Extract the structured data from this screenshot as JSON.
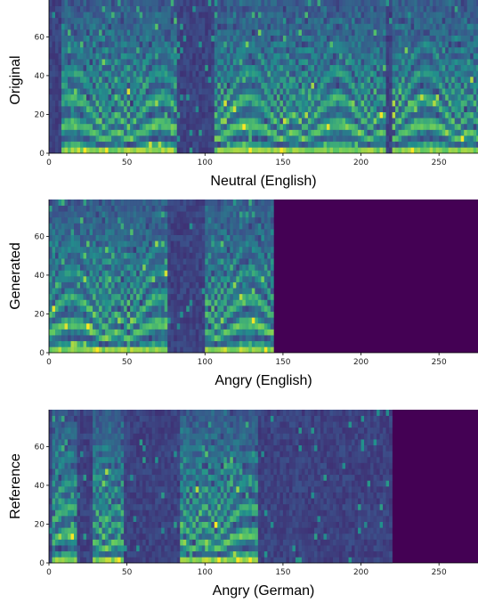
{
  "chart_data": [
    {
      "type": "heatmap",
      "xlabel": "Neutral (English)",
      "ylabel": "Original",
      "xlim": [
        0,
        275
      ],
      "ylim": [
        0,
        79
      ],
      "xticks": [
        0,
        50,
        100,
        150,
        200,
        250
      ],
      "yticks": [
        0,
        20,
        40,
        60
      ],
      "x_end": 275,
      "colormap": "viridis"
    },
    {
      "type": "heatmap",
      "xlabel": "Angry (English)",
      "ylabel": "Generated",
      "xlim": [
        0,
        275
      ],
      "ylim": [
        0,
        79
      ],
      "xticks": [
        0,
        50,
        100,
        150,
        200,
        250
      ],
      "yticks": [
        0,
        20,
        40,
        60
      ],
      "x_end": 143,
      "colormap": "viridis"
    },
    {
      "type": "heatmap",
      "xlabel": "Angry (German)",
      "ylabel": "Reference",
      "xlim": [
        0,
        275
      ],
      "ylim": [
        0,
        79
      ],
      "xticks": [
        0,
        50,
        100,
        150,
        200,
        250
      ],
      "yticks": [
        0,
        20,
        40,
        60
      ],
      "x_end": 220,
      "colormap": "viridis"
    }
  ]
}
